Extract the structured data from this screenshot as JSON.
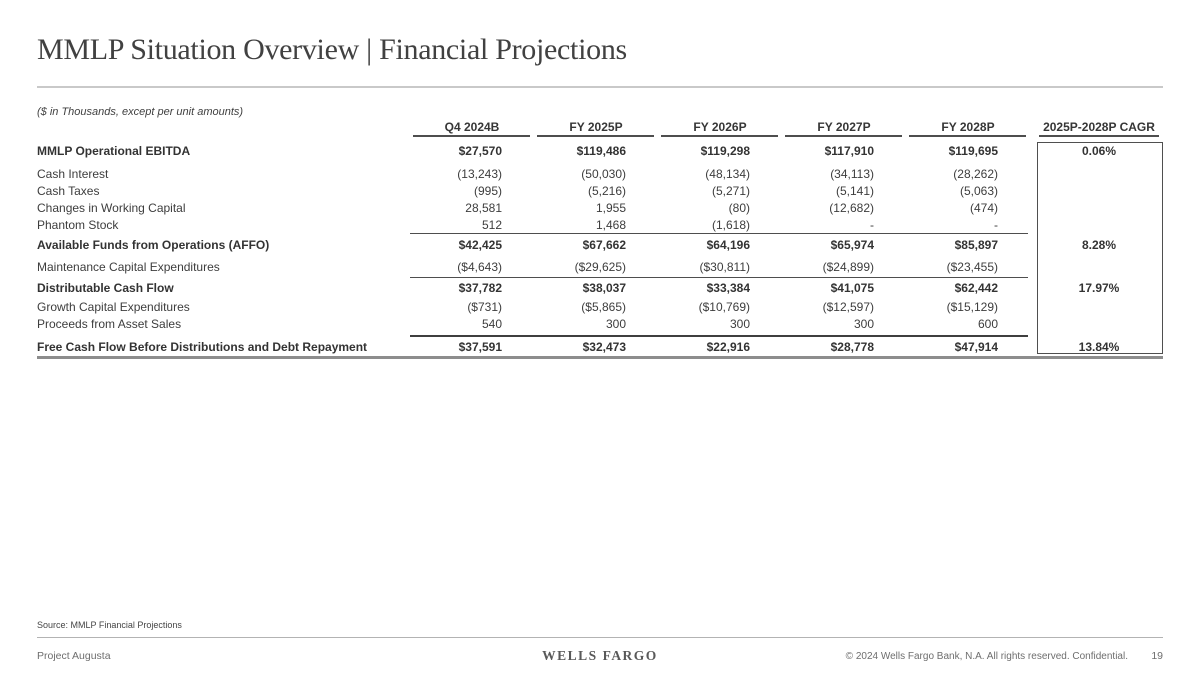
{
  "slide": {
    "title": "MMLP Situation Overview | Financial Projections",
    "units_note": "($ in Thousands, except per unit amounts)",
    "source": "Source: MMLP Financial Projections"
  },
  "table": {
    "columns": [
      "Q4 2024B",
      "FY 2025P",
      "FY 2026P",
      "FY 2027P",
      "FY 2028P"
    ],
    "cagr_header": "2025P-2028P CAGR",
    "rows": [
      {
        "label": "MMLP Operational EBITDA",
        "emphasis": true,
        "rule_above": "none",
        "values": [
          "$27,570",
          "$119,486",
          "$119,298",
          "$117,910",
          "$119,695"
        ],
        "cagr": "0.06%"
      },
      {
        "label": "Cash Interest",
        "emphasis": false,
        "rule_above": "none",
        "values": [
          "(13,243)",
          "(50,030)",
          "(48,134)",
          "(34,113)",
          "(28,262)"
        ],
        "cagr": ""
      },
      {
        "label": "Cash Taxes",
        "emphasis": false,
        "rule_above": "none",
        "values": [
          "(995)",
          "(5,216)",
          "(5,271)",
          "(5,141)",
          "(5,063)"
        ],
        "cagr": ""
      },
      {
        "label": "Changes in Working Capital",
        "emphasis": false,
        "rule_above": "none",
        "values": [
          "28,581",
          "1,955",
          "(80)",
          "(12,682)",
          "(474)"
        ],
        "cagr": ""
      },
      {
        "label": "Phantom Stock",
        "emphasis": false,
        "rule_above": "none",
        "values": [
          "512",
          "1,468",
          "(1,618)",
          "-",
          "-"
        ],
        "cagr": ""
      },
      {
        "label": "Available Funds from Operations (AFFO)",
        "emphasis": true,
        "rule_above": "thin",
        "values": [
          "$42,425",
          "$67,662",
          "$64,196",
          "$65,974",
          "$85,897"
        ],
        "cagr": "8.28%"
      },
      {
        "label": "Maintenance Capital Expenditures",
        "emphasis": false,
        "rule_above": "none",
        "values": [
          "($4,643)",
          "($29,625)",
          "($30,811)",
          "($24,899)",
          "($23,455)"
        ],
        "cagr": ""
      },
      {
        "label": "Distributable Cash Flow",
        "emphasis": true,
        "rule_above": "thin",
        "values": [
          "$37,782",
          "$38,037",
          "$33,384",
          "$41,075",
          "$62,442"
        ],
        "cagr": "17.97%"
      },
      {
        "label": "Growth Capital Expenditures",
        "emphasis": false,
        "rule_above": "none",
        "values": [
          "($731)",
          "($5,865)",
          "($10,769)",
          "($12,597)",
          "($15,129)"
        ],
        "cagr": ""
      },
      {
        "label": "Proceeds from Asset Sales",
        "emphasis": false,
        "rule_above": "none",
        "values": [
          "540",
          "300",
          "300",
          "300",
          "600"
        ],
        "cagr": ""
      },
      {
        "label": "Free Cash Flow Before Distributions and Debt Repayment",
        "emphasis": true,
        "rule_above": "thick",
        "values": [
          "$37,591",
          "$32,473",
          "$22,916",
          "$28,778",
          "$47,914"
        ],
        "cagr": "13.84%"
      }
    ]
  },
  "footer": {
    "project": "Project Augusta",
    "logo": "WELLS FARGO",
    "copyright": "© 2024 Wells Fargo Bank, N.A. All rights reserved. Confidential.",
    "page": "19"
  },
  "colors": {
    "text": "#3d3d3d",
    "rule_light": "#c9c9c9",
    "rule_dark": "#4e4e4e",
    "rule_bottom": "#8d8d8d",
    "cagr_box_border": "#4f4f4f"
  }
}
